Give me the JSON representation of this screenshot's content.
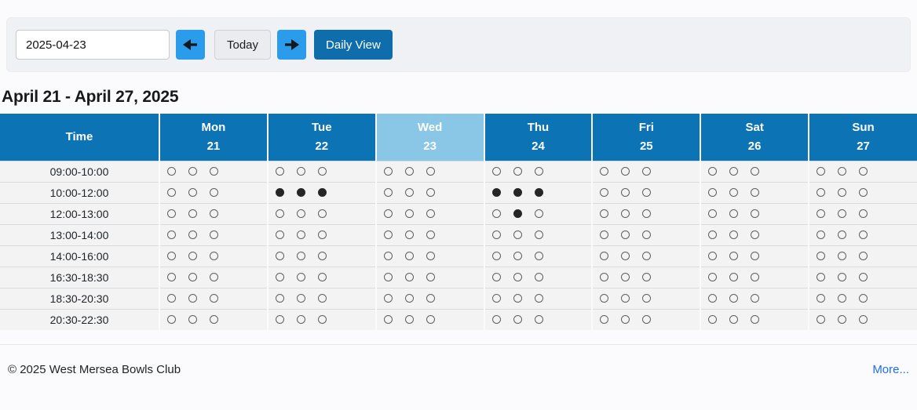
{
  "toolbar": {
    "date_value": "2025-04-23",
    "today_label": "Today",
    "daily_view_label": "Daily View"
  },
  "heading": "April 21 - April 27, 2025",
  "table": {
    "time_header": "Time",
    "days": [
      {
        "name": "Mon",
        "date": "21",
        "highlight": false
      },
      {
        "name": "Tue",
        "date": "22",
        "highlight": false
      },
      {
        "name": "Wed",
        "date": "23",
        "highlight": true
      },
      {
        "name": "Thu",
        "date": "24",
        "highlight": false
      },
      {
        "name": "Fri",
        "date": "25",
        "highlight": false
      },
      {
        "name": "Sat",
        "date": "26",
        "highlight": false
      },
      {
        "name": "Sun",
        "date": "27",
        "highlight": false
      }
    ],
    "rows": [
      {
        "time": "09:00-10:00",
        "slots": [
          [
            0,
            0,
            0
          ],
          [
            0,
            0,
            0
          ],
          [
            0,
            0,
            0
          ],
          [
            0,
            0,
            0
          ],
          [
            0,
            0,
            0
          ],
          [
            0,
            0,
            0
          ],
          [
            0,
            0,
            0
          ]
        ]
      },
      {
        "time": "10:00-12:00",
        "slots": [
          [
            0,
            0,
            0
          ],
          [
            1,
            1,
            1
          ],
          [
            0,
            0,
            0
          ],
          [
            1,
            1,
            1
          ],
          [
            0,
            0,
            0
          ],
          [
            0,
            0,
            0
          ],
          [
            0,
            0,
            0
          ]
        ]
      },
      {
        "time": "12:00-13:00",
        "slots": [
          [
            0,
            0,
            0
          ],
          [
            0,
            0,
            0
          ],
          [
            0,
            0,
            0
          ],
          [
            0,
            1,
            0
          ],
          [
            0,
            0,
            0
          ],
          [
            0,
            0,
            0
          ],
          [
            0,
            0,
            0
          ]
        ]
      },
      {
        "time": "13:00-14:00",
        "slots": [
          [
            0,
            0,
            0
          ],
          [
            0,
            0,
            0
          ],
          [
            0,
            0,
            0
          ],
          [
            0,
            0,
            0
          ],
          [
            0,
            0,
            0
          ],
          [
            0,
            0,
            0
          ],
          [
            0,
            0,
            0
          ]
        ]
      },
      {
        "time": "14:00-16:00",
        "slots": [
          [
            0,
            0,
            0
          ],
          [
            0,
            0,
            0
          ],
          [
            0,
            0,
            0
          ],
          [
            0,
            0,
            0
          ],
          [
            0,
            0,
            0
          ],
          [
            0,
            0,
            0
          ],
          [
            0,
            0,
            0
          ]
        ]
      },
      {
        "time": "16:30-18:30",
        "slots": [
          [
            0,
            0,
            0
          ],
          [
            0,
            0,
            0
          ],
          [
            0,
            0,
            0
          ],
          [
            0,
            0,
            0
          ],
          [
            0,
            0,
            0
          ],
          [
            0,
            0,
            0
          ],
          [
            0,
            0,
            0
          ]
        ]
      },
      {
        "time": "18:30-20:30",
        "slots": [
          [
            0,
            0,
            0
          ],
          [
            0,
            0,
            0
          ],
          [
            0,
            0,
            0
          ],
          [
            0,
            0,
            0
          ],
          [
            0,
            0,
            0
          ],
          [
            0,
            0,
            0
          ],
          [
            0,
            0,
            0
          ]
        ]
      },
      {
        "time": "20:30-22:30",
        "slots": [
          [
            0,
            0,
            0
          ],
          [
            0,
            0,
            0
          ],
          [
            0,
            0,
            0
          ],
          [
            0,
            0,
            0
          ],
          [
            0,
            0,
            0
          ],
          [
            0,
            0,
            0
          ],
          [
            0,
            0,
            0
          ]
        ]
      }
    ]
  },
  "footer": {
    "copyright": "© 2025 West Mersea Bowls Club",
    "more_label": "More..."
  },
  "colors": {
    "header_blue": "#0c73b4",
    "highlight_blue": "#8ac6e6",
    "arrow_button_blue": "#2b9ceb",
    "daily_view_blue": "#0f6dab",
    "link_blue": "#1a6ff0"
  }
}
